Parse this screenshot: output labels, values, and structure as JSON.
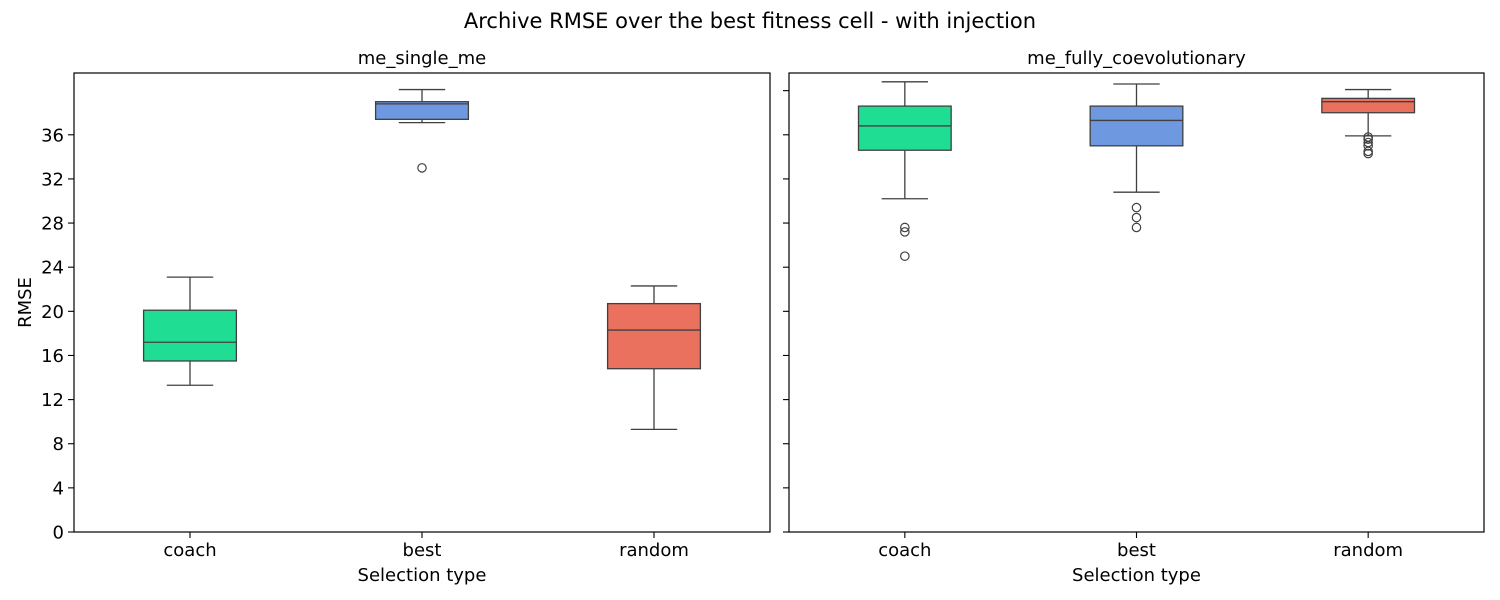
{
  "figure": {
    "title": "Archive RMSE over the best fitness cell - with injection"
  },
  "chart_data": [
    {
      "type": "box",
      "title": "me_single_me",
      "xlabel": "Selection type",
      "ylabel": "RMSE",
      "categories": [
        "coach",
        "best",
        "random"
      ],
      "colors": [
        "#1fde94",
        "#6e98e0",
        "#eb715f"
      ],
      "ylim": [
        0,
        41.6
      ],
      "yticks": [
        0,
        4,
        8,
        12,
        16,
        20,
        24,
        28,
        32,
        36
      ],
      "ytick_labels_shown": true,
      "boxes": [
        {
          "whislo": 13.3,
          "q1": 15.5,
          "med": 17.2,
          "q3": 20.1,
          "whishi": 23.1,
          "fliers": []
        },
        {
          "whislo": 37.1,
          "q1": 37.4,
          "med": 38.8,
          "q3": 39.0,
          "whishi": 40.1,
          "fliers": [
            33.0
          ]
        },
        {
          "whislo": 9.3,
          "q1": 14.8,
          "med": 18.3,
          "q3": 20.7,
          "whishi": 22.3,
          "fliers": []
        }
      ]
    },
    {
      "type": "box",
      "title": "me_fully_coevolutionary",
      "xlabel": "Selection type",
      "ylabel": "",
      "categories": [
        "coach",
        "best",
        "random"
      ],
      "colors": [
        "#1fde94",
        "#6e98e0",
        "#eb715f"
      ],
      "ylim": [
        0,
        41.6
      ],
      "yticks": [
        0,
        4,
        8,
        12,
        16,
        20,
        24,
        28,
        32,
        36,
        40
      ],
      "ytick_labels_shown": false,
      "boxes": [
        {
          "whislo": 30.2,
          "q1": 34.6,
          "med": 36.8,
          "q3": 38.6,
          "whishi": 40.8,
          "fliers": [
            27.6,
            27.2,
            25.0
          ]
        },
        {
          "whislo": 30.8,
          "q1": 35.0,
          "med": 37.3,
          "q3": 38.6,
          "whishi": 40.6,
          "fliers": [
            29.4,
            28.5,
            27.6
          ]
        },
        {
          "whislo": 35.9,
          "q1": 38.0,
          "med": 39.0,
          "q3": 39.3,
          "whishi": 40.1,
          "fliers": [
            35.8,
            35.6,
            35.3,
            35.0,
            34.5,
            34.3
          ]
        }
      ]
    }
  ]
}
